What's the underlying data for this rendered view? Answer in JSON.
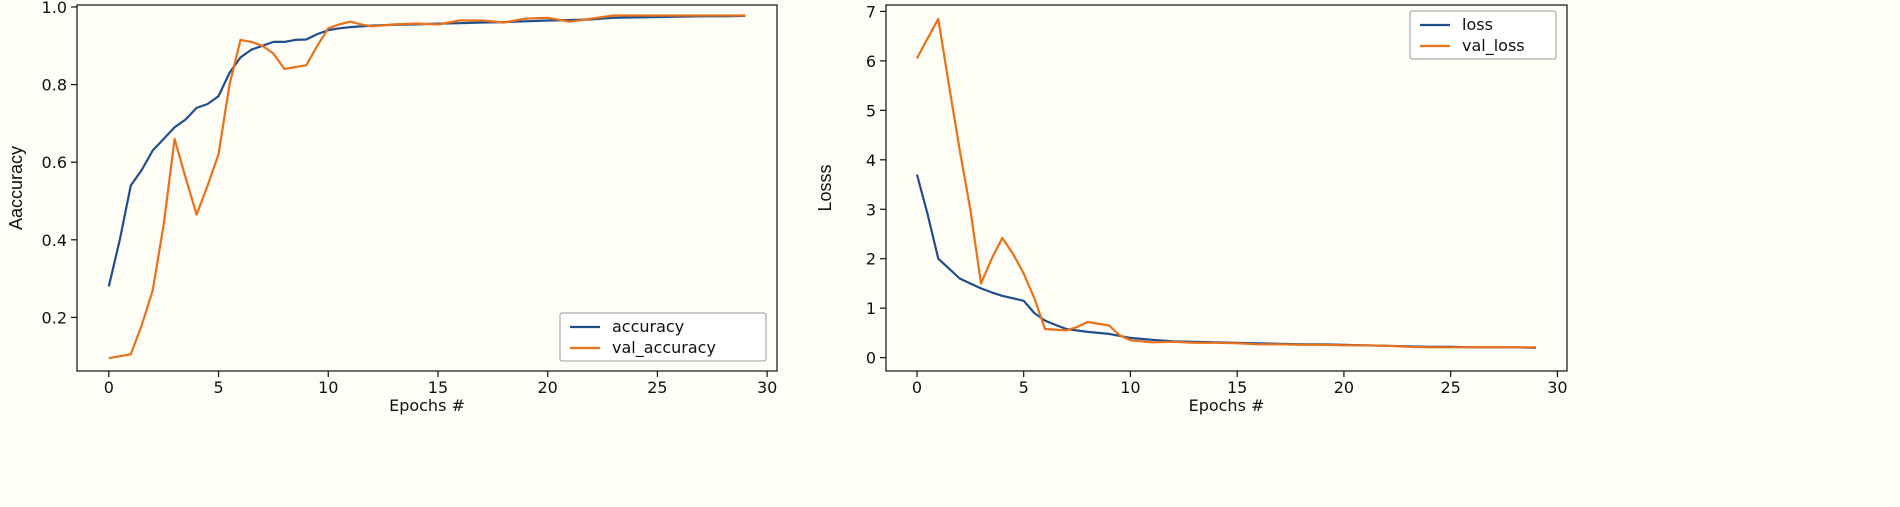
{
  "chart_data": [
    {
      "type": "line",
      "xlabel": "Epochs #",
      "ylabel": "Aaccuracy",
      "xlim": [
        -1.45,
        30.45
      ],
      "ylim": [
        0.062,
        1.005
      ],
      "xticks": [
        0,
        5,
        10,
        15,
        20,
        25,
        30
      ],
      "yticks": [
        0.2,
        0.4,
        0.6,
        0.8,
        1.0
      ],
      "legend_position": "bottom-right",
      "series": [
        {
          "name": "accuracy",
          "color": "#1f4e8c",
          "x": [
            0,
            0.5,
            1,
            1.5,
            2,
            2.5,
            3,
            3.5,
            4,
            4.5,
            5,
            5.5,
            6,
            6.5,
            7,
            7.5,
            8,
            8.5,
            9,
            9.5,
            10,
            10.5,
            11,
            12,
            13,
            14,
            15,
            16,
            17,
            18,
            19,
            20,
            21,
            22,
            23,
            24,
            25,
            26,
            27,
            28,
            29
          ],
          "values": [
            0.28,
            0.4,
            0.54,
            0.58,
            0.63,
            0.66,
            0.69,
            0.71,
            0.74,
            0.75,
            0.77,
            0.83,
            0.87,
            0.89,
            0.9,
            0.91,
            0.91,
            0.915,
            0.916,
            0.93,
            0.94,
            0.945,
            0.948,
            0.952,
            0.954,
            0.955,
            0.957,
            0.958,
            0.96,
            0.961,
            0.963,
            0.965,
            0.966,
            0.968,
            0.972,
            0.973,
            0.974,
            0.975,
            0.976,
            0.976,
            0.977
          ]
        },
        {
          "name": "val_accuracy",
          "color": "#e8711a",
          "x": [
            0,
            1,
            1.5,
            2,
            2.5,
            3,
            3.5,
            4,
            4.5,
            5,
            5.5,
            6,
            6.5,
            7,
            7.5,
            8,
            8.5,
            9,
            9.5,
            10,
            10.5,
            11,
            11.5,
            12,
            13,
            14,
            15,
            16,
            17,
            18,
            19,
            20,
            21,
            22,
            23,
            24,
            25,
            26,
            27,
            28,
            29
          ],
          "values": [
            0.095,
            0.105,
            0.18,
            0.27,
            0.44,
            0.66,
            0.56,
            0.465,
            0.54,
            0.62,
            0.8,
            0.915,
            0.91,
            0.9,
            0.88,
            0.84,
            0.845,
            0.85,
            0.9,
            0.945,
            0.955,
            0.962,
            0.955,
            0.95,
            0.955,
            0.957,
            0.955,
            0.965,
            0.965,
            0.96,
            0.97,
            0.972,
            0.962,
            0.97,
            0.978,
            0.978,
            0.978,
            0.978,
            0.978,
            0.978,
            0.978
          ]
        }
      ]
    },
    {
      "type": "line",
      "xlabel": "Epochs #",
      "ylabel": "Losss",
      "xlim": [
        -1.45,
        30.45
      ],
      "ylim": [
        -0.27,
        7.13
      ],
      "xticks": [
        0,
        5,
        10,
        15,
        20,
        25,
        30
      ],
      "yticks": [
        0,
        1,
        2,
        3,
        4,
        5,
        6,
        7
      ],
      "legend_position": "top-right",
      "series": [
        {
          "name": "loss",
          "color": "#1f4e8c",
          "x": [
            0,
            0.5,
            1,
            1.5,
            2,
            2.5,
            3,
            3.5,
            4,
            4.5,
            5,
            5.5,
            6,
            6.5,
            7,
            8,
            9,
            10,
            11,
            12,
            13,
            14,
            15,
            16,
            17,
            18,
            19,
            20,
            21,
            22,
            23,
            24,
            25,
            26,
            27,
            28,
            29
          ],
          "values": [
            3.7,
            2.9,
            2.0,
            1.8,
            1.6,
            1.5,
            1.4,
            1.32,
            1.25,
            1.2,
            1.15,
            0.9,
            0.75,
            0.66,
            0.58,
            0.52,
            0.48,
            0.4,
            0.36,
            0.33,
            0.32,
            0.31,
            0.3,
            0.29,
            0.28,
            0.27,
            0.27,
            0.26,
            0.25,
            0.24,
            0.23,
            0.22,
            0.22,
            0.21,
            0.21,
            0.21,
            0.2
          ]
        },
        {
          "name": "val_loss",
          "color": "#e8711a",
          "x": [
            0,
            0.3,
            1,
            1.5,
            2,
            2.5,
            3,
            3.5,
            4,
            4.5,
            5,
            5.5,
            6,
            7,
            7.5,
            8,
            9,
            9.5,
            10,
            11,
            12,
            13,
            14,
            15,
            16,
            17,
            18,
            19,
            20,
            21,
            22,
            23,
            24,
            25,
            26,
            27,
            28,
            29
          ],
          "values": [
            6.05,
            6.3,
            6.85,
            5.5,
            4.2,
            3.0,
            1.5,
            2.0,
            2.42,
            2.1,
            1.7,
            1.2,
            0.58,
            0.55,
            0.62,
            0.72,
            0.65,
            0.45,
            0.35,
            0.31,
            0.32,
            0.3,
            0.3,
            0.29,
            0.27,
            0.27,
            0.26,
            0.26,
            0.25,
            0.25,
            0.24,
            0.22,
            0.21,
            0.21,
            0.21,
            0.21,
            0.21,
            0.21
          ]
        }
      ]
    }
  ]
}
